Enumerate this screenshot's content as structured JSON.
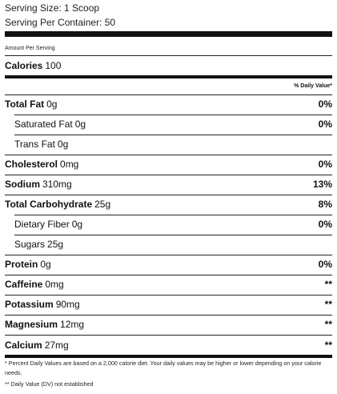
{
  "serving": {
    "size": "Serving Size: 1 Scoop",
    "per_container": "Serving Per Container: 50"
  },
  "amount_per_serving": "Amount Per Serving",
  "calories": {
    "label": "Calories",
    "value": "100"
  },
  "dv_header": "% Daily Value*",
  "nutrients": [
    {
      "label": "Total Fat",
      "amount": "0g",
      "dv": "0%"
    },
    {
      "label": "Saturated Fat",
      "amount": "0g",
      "dv": "0%"
    },
    {
      "label": "Trans Fat",
      "amount": "0g",
      "dv": ""
    },
    {
      "label": "Cholesterol",
      "amount": "0mg",
      "dv": "0%"
    },
    {
      "label": "Sodium",
      "amount": "310mg",
      "dv": "13%"
    },
    {
      "label": "Total Carbohydrate",
      "amount": "25g",
      "dv": "8%"
    },
    {
      "label": "Dietary Fiber",
      "amount": "0g",
      "dv": "0%"
    },
    {
      "label": "Sugars",
      "amount": "25g",
      "dv": ""
    },
    {
      "label": "Protein",
      "amount": "0g",
      "dv": "0%"
    },
    {
      "label": "Caffeine",
      "amount": "0mg",
      "dv": "**"
    },
    {
      "label": "Potassium",
      "amount": "90mg",
      "dv": "**"
    },
    {
      "label": "Magnesium",
      "amount": "12mg",
      "dv": "**"
    },
    {
      "label": "Calcium",
      "amount": "27mg",
      "dv": "**"
    }
  ],
  "footnotes": {
    "percent": "* Percent Daily Values are based on a 2,000 calorie diet. Your daily values may be higher or lower depending on your calorie needs.",
    "dv": "** Daily Value (DV) not established"
  }
}
